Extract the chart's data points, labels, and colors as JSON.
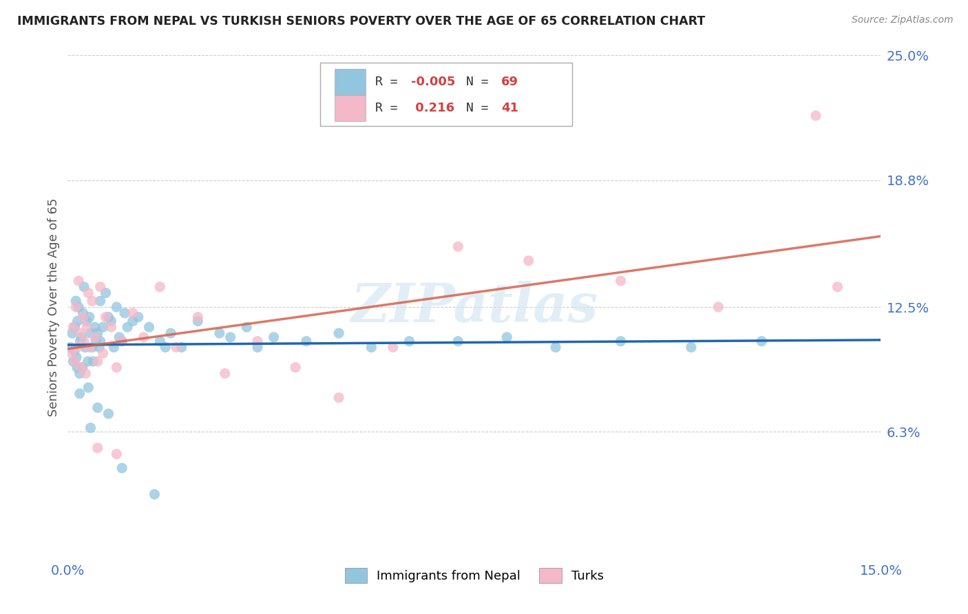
{
  "title": "IMMIGRANTS FROM NEPAL VS TURKISH SENIORS POVERTY OVER THE AGE OF 65 CORRELATION CHART",
  "source": "Source: ZipAtlas.com",
  "ylabel": "Seniors Poverty Over the Age of 65",
  "xmin": 0.0,
  "xmax": 15.0,
  "ymin": 0.0,
  "ymax": 25.0,
  "yticks": [
    6.3,
    12.5,
    18.8,
    25.0
  ],
  "ytick_labels": [
    "6.3%",
    "12.5%",
    "18.8%",
    "25.0%"
  ],
  "xtick_labels": [
    "0.0%",
    "15.0%"
  ],
  "series1_label": "Immigrants from Nepal",
  "series1_R": "-0.005",
  "series1_N": "69",
  "series1_color": "#92c5de",
  "series2_label": "Turks",
  "series2_R": "0.216",
  "series2_N": "41",
  "series2_color": "#f4b8c8",
  "watermark": "ZIPatlas",
  "watermark_color": "#d0e4f0",
  "background_color": "#ffffff",
  "grid_color": "#cccccc",
  "tick_color": "#4472c4",
  "nepal_x": [
    0.05,
    0.08,
    0.1,
    0.12,
    0.13,
    0.15,
    0.16,
    0.17,
    0.18,
    0.2,
    0.22,
    0.23,
    0.25,
    0.27,
    0.28,
    0.3,
    0.32,
    0.35,
    0.37,
    0.4,
    0.42,
    0.45,
    0.47,
    0.5,
    0.52,
    0.55,
    0.58,
    0.6,
    0.65,
    0.7,
    0.75,
    0.8,
    0.85,
    0.9,
    0.95,
    1.0,
    1.05,
    1.1,
    1.2,
    1.3,
    1.5,
    1.7,
    1.9,
    2.1,
    2.4,
    2.8,
    3.3,
    3.8,
    4.4,
    5.0,
    5.6,
    6.3,
    3.5,
    7.2,
    8.1,
    9.0,
    10.2,
    11.5,
    12.8,
    3.0,
    1.8,
    0.6,
    0.38,
    0.22,
    0.42,
    0.55,
    0.75,
    1.0,
    1.6
  ],
  "nepal_y": [
    10.5,
    11.2,
    9.8,
    10.3,
    11.5,
    12.8,
    10.0,
    9.5,
    11.8,
    12.5,
    9.2,
    10.8,
    11.0,
    9.5,
    12.2,
    13.5,
    10.5,
    11.8,
    9.8,
    12.0,
    11.2,
    10.5,
    9.8,
    11.5,
    10.8,
    11.2,
    10.5,
    12.8,
    11.5,
    13.2,
    12.0,
    11.8,
    10.5,
    12.5,
    11.0,
    10.8,
    12.2,
    11.5,
    11.8,
    12.0,
    11.5,
    10.8,
    11.2,
    10.5,
    11.8,
    11.2,
    11.5,
    11.0,
    10.8,
    11.2,
    10.5,
    10.8,
    10.5,
    10.8,
    11.0,
    10.5,
    10.8,
    10.5,
    10.8,
    11.0,
    10.5,
    10.8,
    8.5,
    8.2,
    6.5,
    7.5,
    7.2,
    4.5,
    3.2
  ],
  "turk_x": [
    0.07,
    0.1,
    0.13,
    0.15,
    0.18,
    0.2,
    0.23,
    0.25,
    0.28,
    0.3,
    0.33,
    0.35,
    0.38,
    0.4,
    0.45,
    0.5,
    0.55,
    0.6,
    0.65,
    0.7,
    0.8,
    0.9,
    1.0,
    1.2,
    1.4,
    1.7,
    2.0,
    2.4,
    2.9,
    3.5,
    4.2,
    5.0,
    6.0,
    7.2,
    8.5,
    10.2,
    12.0,
    13.8,
    14.2,
    0.55,
    0.9
  ],
  "turk_y": [
    10.2,
    11.5,
    9.8,
    12.5,
    10.5,
    13.8,
    11.2,
    9.5,
    12.0,
    10.8,
    9.2,
    11.5,
    13.2,
    10.5,
    12.8,
    11.0,
    9.8,
    13.5,
    10.2,
    12.0,
    11.5,
    9.5,
    10.8,
    12.2,
    11.0,
    13.5,
    10.5,
    12.0,
    9.2,
    10.8,
    9.5,
    8.0,
    10.5,
    15.5,
    14.8,
    13.8,
    12.5,
    22.0,
    13.5,
    5.5,
    5.2
  ]
}
